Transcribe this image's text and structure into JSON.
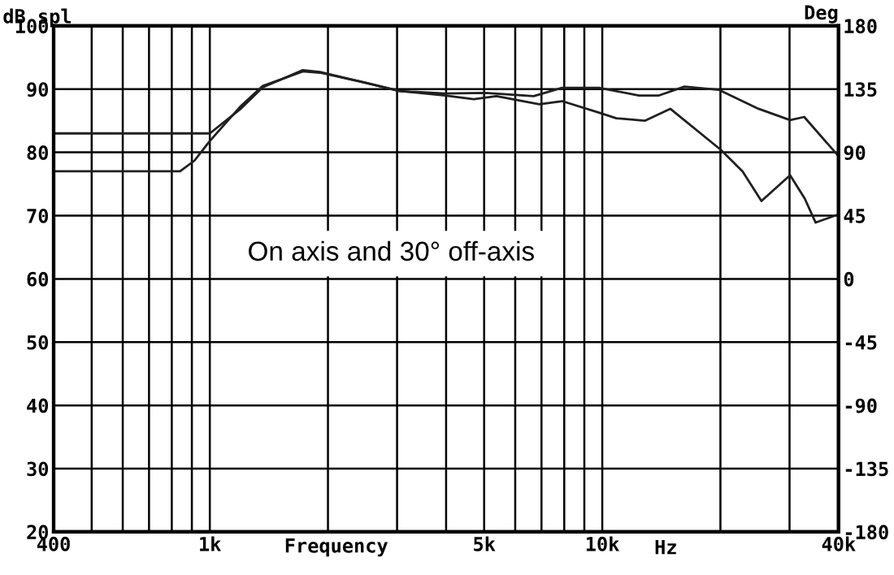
{
  "chart_data": {
    "type": "line",
    "ylabel": "dB spl",
    "y2label": "Deg",
    "xlabel": "Frequency",
    "annotations": [
      "On axis and 30° off-axis",
      "Hz"
    ],
    "log": "x",
    "grid": true,
    "legend": false,
    "marker": "none",
    "line_style": "solid",
    "xlim": [
      400,
      40000
    ],
    "xticks": [
      {
        "value": 400,
        "label": "400"
      },
      {
        "value": 500,
        "label": null
      },
      {
        "value": 600,
        "label": null
      },
      {
        "value": 700,
        "label": null
      },
      {
        "value": 800,
        "label": null
      },
      {
        "value": 900,
        "label": null
      },
      {
        "value": 1000,
        "label": "1k"
      },
      {
        "value": 2000,
        "label": null
      },
      {
        "value": 3000,
        "label": null
      },
      {
        "value": 4000,
        "label": null
      },
      {
        "value": 5000,
        "label": "5k"
      },
      {
        "value": 6000,
        "label": null
      },
      {
        "value": 7000,
        "label": null
      },
      {
        "value": 8000,
        "label": null
      },
      {
        "value": 9000,
        "label": null
      },
      {
        "value": 10000,
        "label": "10k"
      },
      {
        "value": 20000,
        "label": null
      },
      {
        "value": 30000,
        "label": null
      },
      {
        "value": 40000,
        "label": "40k"
      }
    ],
    "ylim": [
      20,
      100
    ],
    "yticks": [
      20,
      30,
      40,
      50,
      60,
      70,
      80,
      90,
      100
    ],
    "y2lim": [
      -180,
      180
    ],
    "y2ticks": [
      -180,
      -135,
      -90,
      -45,
      0,
      45,
      90,
      135,
      180
    ],
    "series": [
      {
        "color": "#202020",
        "x": [
          400,
          840,
          914,
          1000,
          1194,
          1364,
          1726,
          1908,
          2492,
          3045,
          3980,
          5031,
          6684,
          7900,
          9800,
          12400,
          13950,
          16200,
          19800,
          25000,
          30100,
          32700,
          40000
        ],
        "values": [
          77,
          77,
          78.7,
          81.8,
          87.2,
          90.5,
          92.8,
          92.6,
          91.0,
          89.7,
          89.3,
          89.4,
          88.9,
          90.2,
          90.2,
          89.0,
          89.0,
          90.4,
          89.9,
          86.9,
          85.1,
          85.6,
          79.4
        ]
      },
      {
        "color": "#202020",
        "x": [
          400,
          1000,
          1194,
          1364,
          1726,
          1908,
          2492,
          3045,
          3980,
          4704,
          5375,
          6910,
          7900,
          9800,
          10860,
          12830,
          14900,
          20050,
          22770,
          25440,
          30100,
          32800,
          34960,
          40000
        ],
        "values": [
          83,
          83,
          86.8,
          90.3,
          93.0,
          92.7,
          91.0,
          89.7,
          89.0,
          88.4,
          88.9,
          87.6,
          88.1,
          86.3,
          85.4,
          85.0,
          86.9,
          80.4,
          77.0,
          72.3,
          76.4,
          72.7,
          68.9,
          70.2
        ]
      }
    ]
  }
}
